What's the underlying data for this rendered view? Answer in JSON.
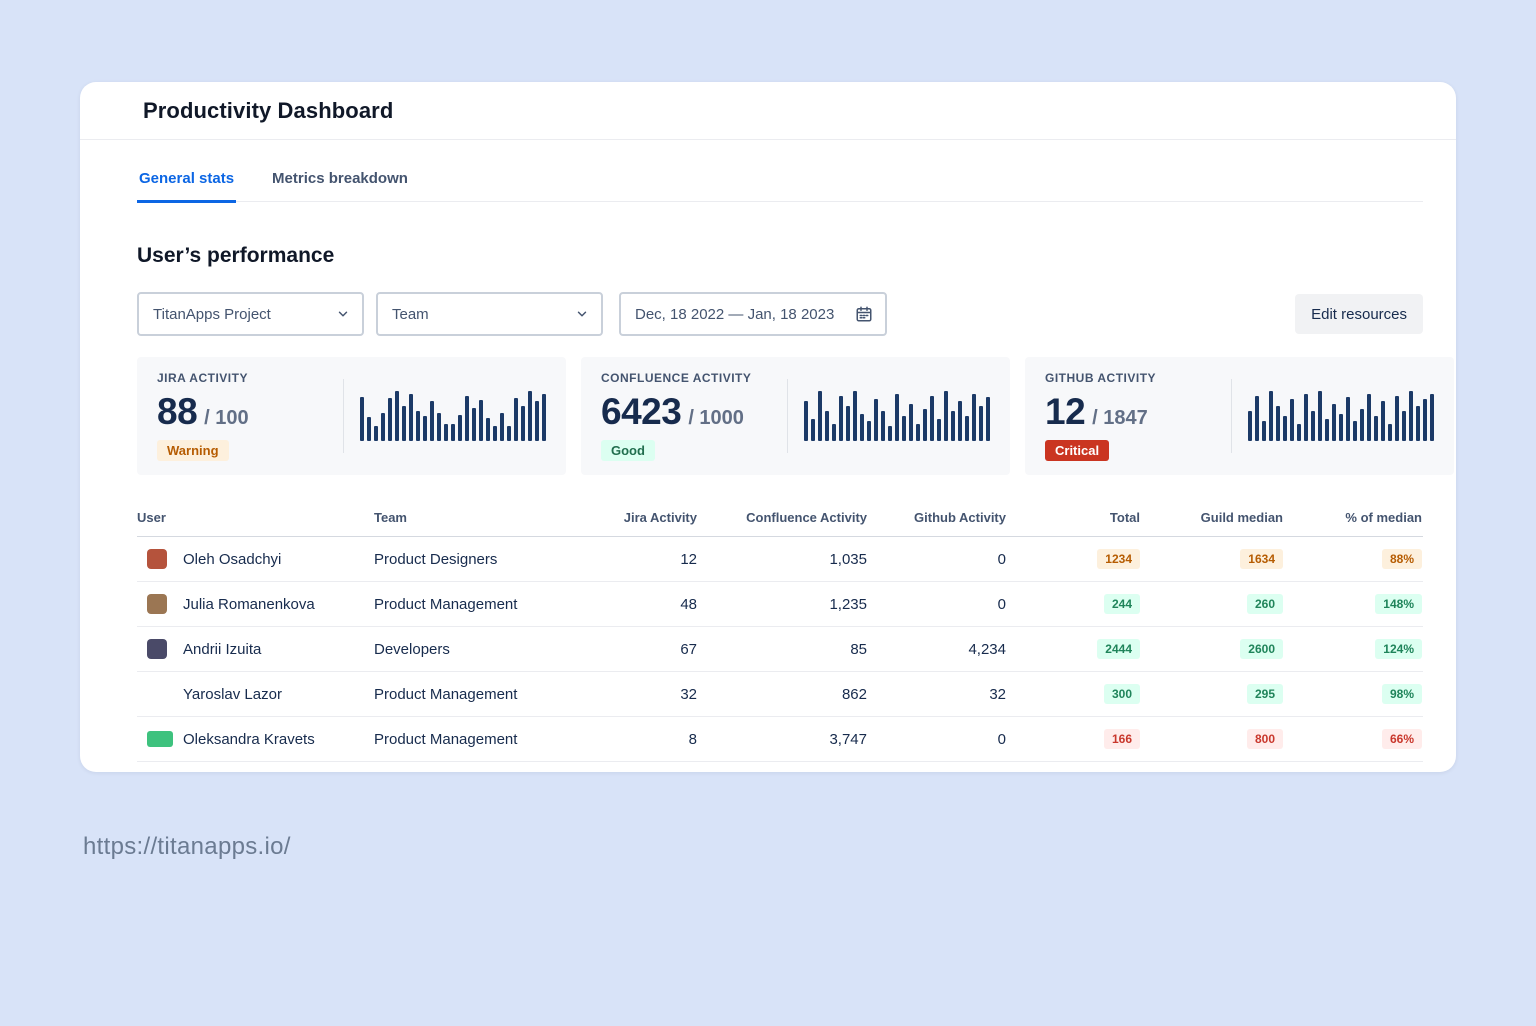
{
  "header": {
    "title": "Productivity Dashboard"
  },
  "tabs": [
    {
      "label": "General stats",
      "active": true
    },
    {
      "label": "Metrics breakdown",
      "active": false
    }
  ],
  "section_title": "User’s performance",
  "filters": {
    "project": "TitanApps Project",
    "team": "Team",
    "date_range": "Dec, 18 2022 — Jan, 18 2023",
    "edit_button": "Edit resources"
  },
  "stat_cards": [
    {
      "label": "JIRA ACTIVITY",
      "value": "88",
      "target": "/ 100",
      "status": "Warning",
      "status_type": "warning",
      "bars": [
        88,
        48,
        30,
        56,
        86,
        100,
        70,
        95,
        60,
        50,
        80,
        56,
        34,
        34,
        52,
        90,
        66,
        82,
        46,
        30,
        56,
        30,
        86,
        70,
        100,
        80,
        95
      ]
    },
    {
      "label": "CONFLUENCE ACTIVITY",
      "value": "6423",
      "target": "/ 1000",
      "status": "Good",
      "status_type": "good",
      "bars": [
        80,
        45,
        100,
        60,
        35,
        90,
        70,
        100,
        55,
        40,
        85,
        60,
        30,
        95,
        50,
        75,
        35,
        65,
        90,
        45,
        100,
        60,
        80,
        50,
        95,
        70,
        88
      ]
    },
    {
      "label": "GITHUB ACTIVITY",
      "value": "12",
      "target": "/ 1847",
      "status": "Critical",
      "status_type": "critical",
      "bars": [
        60,
        90,
        40,
        100,
        70,
        50,
        85,
        35,
        95,
        60,
        100,
        45,
        75,
        55,
        88,
        40,
        65,
        95,
        50,
        80,
        35,
        90,
        60,
        100,
        70,
        85,
        95
      ]
    }
  ],
  "table": {
    "columns": [
      "User",
      "Team",
      "Jira Activity",
      "Confluence Activity",
      "Github Activity",
      "Total",
      "Guild median",
      "% of median"
    ],
    "rows": [
      {
        "user": "Oleh Osadchyi",
        "team": "Product Designers",
        "jira": "12",
        "confluence": "1,035",
        "github": "0",
        "total": "1234",
        "guild_median": "1634",
        "pct_median": "88%",
        "tone": "warning",
        "avatar_color": "#b5533c",
        "avatar_shape": "square"
      },
      {
        "user": "Julia Romanenkova",
        "team": "Product Management",
        "jira": "48",
        "confluence": "1,235",
        "github": "0",
        "total": "244",
        "guild_median": "260",
        "pct_median": "148%",
        "tone": "good",
        "avatar_color": "#9b7653",
        "avatar_shape": "square"
      },
      {
        "user": "Andrii Izuita",
        "team": "Developers",
        "jira": "67",
        "confluence": "85",
        "github": "4,234",
        "total": "2444",
        "guild_median": "2600",
        "pct_median": "124%",
        "tone": "good",
        "avatar_color": "#4a4a68",
        "avatar_shape": "square"
      },
      {
        "user": "Yaroslav Lazor",
        "team": "Product Management",
        "jira": "32",
        "confluence": "862",
        "github": "32",
        "total": "300",
        "guild_median": "295",
        "pct_median": "98%",
        "tone": "good",
        "avatar_color": null,
        "avatar_shape": "square"
      },
      {
        "user": "Oleksandra Kravets",
        "team": "Product Management",
        "jira": "8",
        "confluence": "3,747",
        "github": "0",
        "total": "166",
        "guild_median": "800",
        "pct_median": "66%",
        "tone": "danger",
        "avatar_color": "#3ec27e",
        "avatar_shape": "wide"
      }
    ]
  },
  "page": {
    "url_caption": "https://titanapps.io/"
  }
}
